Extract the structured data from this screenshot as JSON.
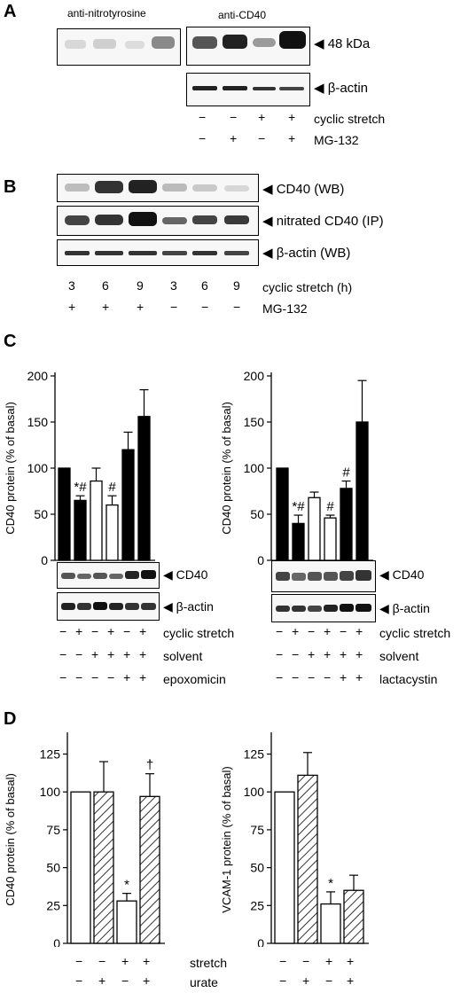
{
  "panelA": {
    "letter": "A",
    "label_nitro": "anti-nitrotyrosine",
    "label_cd40": "anti-CD40",
    "band_48": "◀ 48 kDa",
    "band_actin": "◀ β-actin",
    "row1_label": "cyclic stretch",
    "row2_label": "MG-132",
    "row1_signs": [
      "−",
      "−",
      "+",
      "+"
    ],
    "row2_signs": [
      "−",
      "+",
      "−",
      "+"
    ]
  },
  "panelB": {
    "letter": "B",
    "band1": "◀ CD40 (WB)",
    "band2": "◀ nitrated CD40 (IP)",
    "band3": "◀ β-actin (WB)",
    "row1_label": "cyclic stretch (h)",
    "row2_label": "MG-132",
    "row1_values": [
      "3",
      "6",
      "9",
      "3",
      "6",
      "9"
    ],
    "row2_signs": [
      "+",
      "+",
      "+",
      "−",
      "−",
      "−"
    ]
  },
  "panelC": {
    "letter": "C",
    "band_cd40": "◀ CD40",
    "band_actin": "◀ β-actin",
    "row1_label": "cyclic stretch",
    "row2_label": "solvent",
    "row1_signs": [
      "−",
      "+",
      "−",
      "+",
      "−",
      "+"
    ],
    "row2_signs": [
      "−",
      "−",
      "+",
      "+",
      "+",
      "+"
    ],
    "row3_signs": [
      "−",
      "−",
      "−",
      "−",
      "+",
      "+"
    ],
    "left_row3_label": "epoxomicin",
    "right_row3_label": "lactacystin"
  },
  "panelD": {
    "letter": "D",
    "row1_label": "stretch",
    "row2_label": "urate",
    "row1_signs": [
      "−",
      "−",
      "+",
      "+"
    ],
    "row2_signs": [
      "−",
      "+",
      "−",
      "+"
    ]
  },
  "chart_data": [
    {
      "type": "bar",
      "panel": "C-left",
      "ylabel": "CD40 protein (% of basal)",
      "ylim": [
        0,
        200
      ],
      "yticks": [
        "0",
        "50",
        "100",
        "150",
        "200"
      ],
      "values": [
        100,
        65,
        86,
        60,
        120,
        156
      ],
      "errors": [
        0,
        5,
        14,
        10,
        19,
        29
      ],
      "fills": [
        "black",
        "black",
        "white",
        "white",
        "black",
        "black"
      ],
      "annotations": [
        "",
        "*#",
        "",
        "#",
        "",
        ""
      ]
    },
    {
      "type": "bar",
      "panel": "C-right",
      "ylabel": "CD40 protein (% of basal)",
      "ylim": [
        0,
        200
      ],
      "yticks": [
        "0",
        "50",
        "100",
        "150",
        "200"
      ],
      "values": [
        100,
        40,
        68,
        46,
        78,
        150
      ],
      "errors": [
        0,
        9,
        6,
        3,
        8,
        45
      ],
      "fills": [
        "black",
        "black",
        "white",
        "white",
        "black",
        "black"
      ],
      "annotations": [
        "",
        "*#",
        "",
        "#",
        "#",
        ""
      ]
    },
    {
      "type": "bar",
      "panel": "D-left",
      "ylabel": "CD40 protein (% of basal)",
      "ylim": [
        0,
        137
      ],
      "yticks": [
        "0",
        "25",
        "50",
        "75",
        "100",
        "125"
      ],
      "values": [
        100,
        100,
        28,
        97
      ],
      "errors": [
        0,
        20,
        5,
        15
      ],
      "fills": [
        "white",
        "hatch",
        "white",
        "hatch"
      ],
      "annotations": [
        "",
        "",
        "*",
        "†"
      ]
    },
    {
      "type": "bar",
      "panel": "D-right",
      "ylabel": "VCAM-1 protein (% of basal)",
      "ylim": [
        0,
        137
      ],
      "yticks": [
        "0",
        "25",
        "50",
        "75",
        "100",
        "125"
      ],
      "values": [
        100,
        111,
        26,
        35
      ],
      "errors": [
        0,
        15,
        8,
        10
      ],
      "fills": [
        "white",
        "hatch",
        "white",
        "hatch"
      ],
      "annotations": [
        "",
        "",
        "*",
        ""
      ]
    }
  ]
}
